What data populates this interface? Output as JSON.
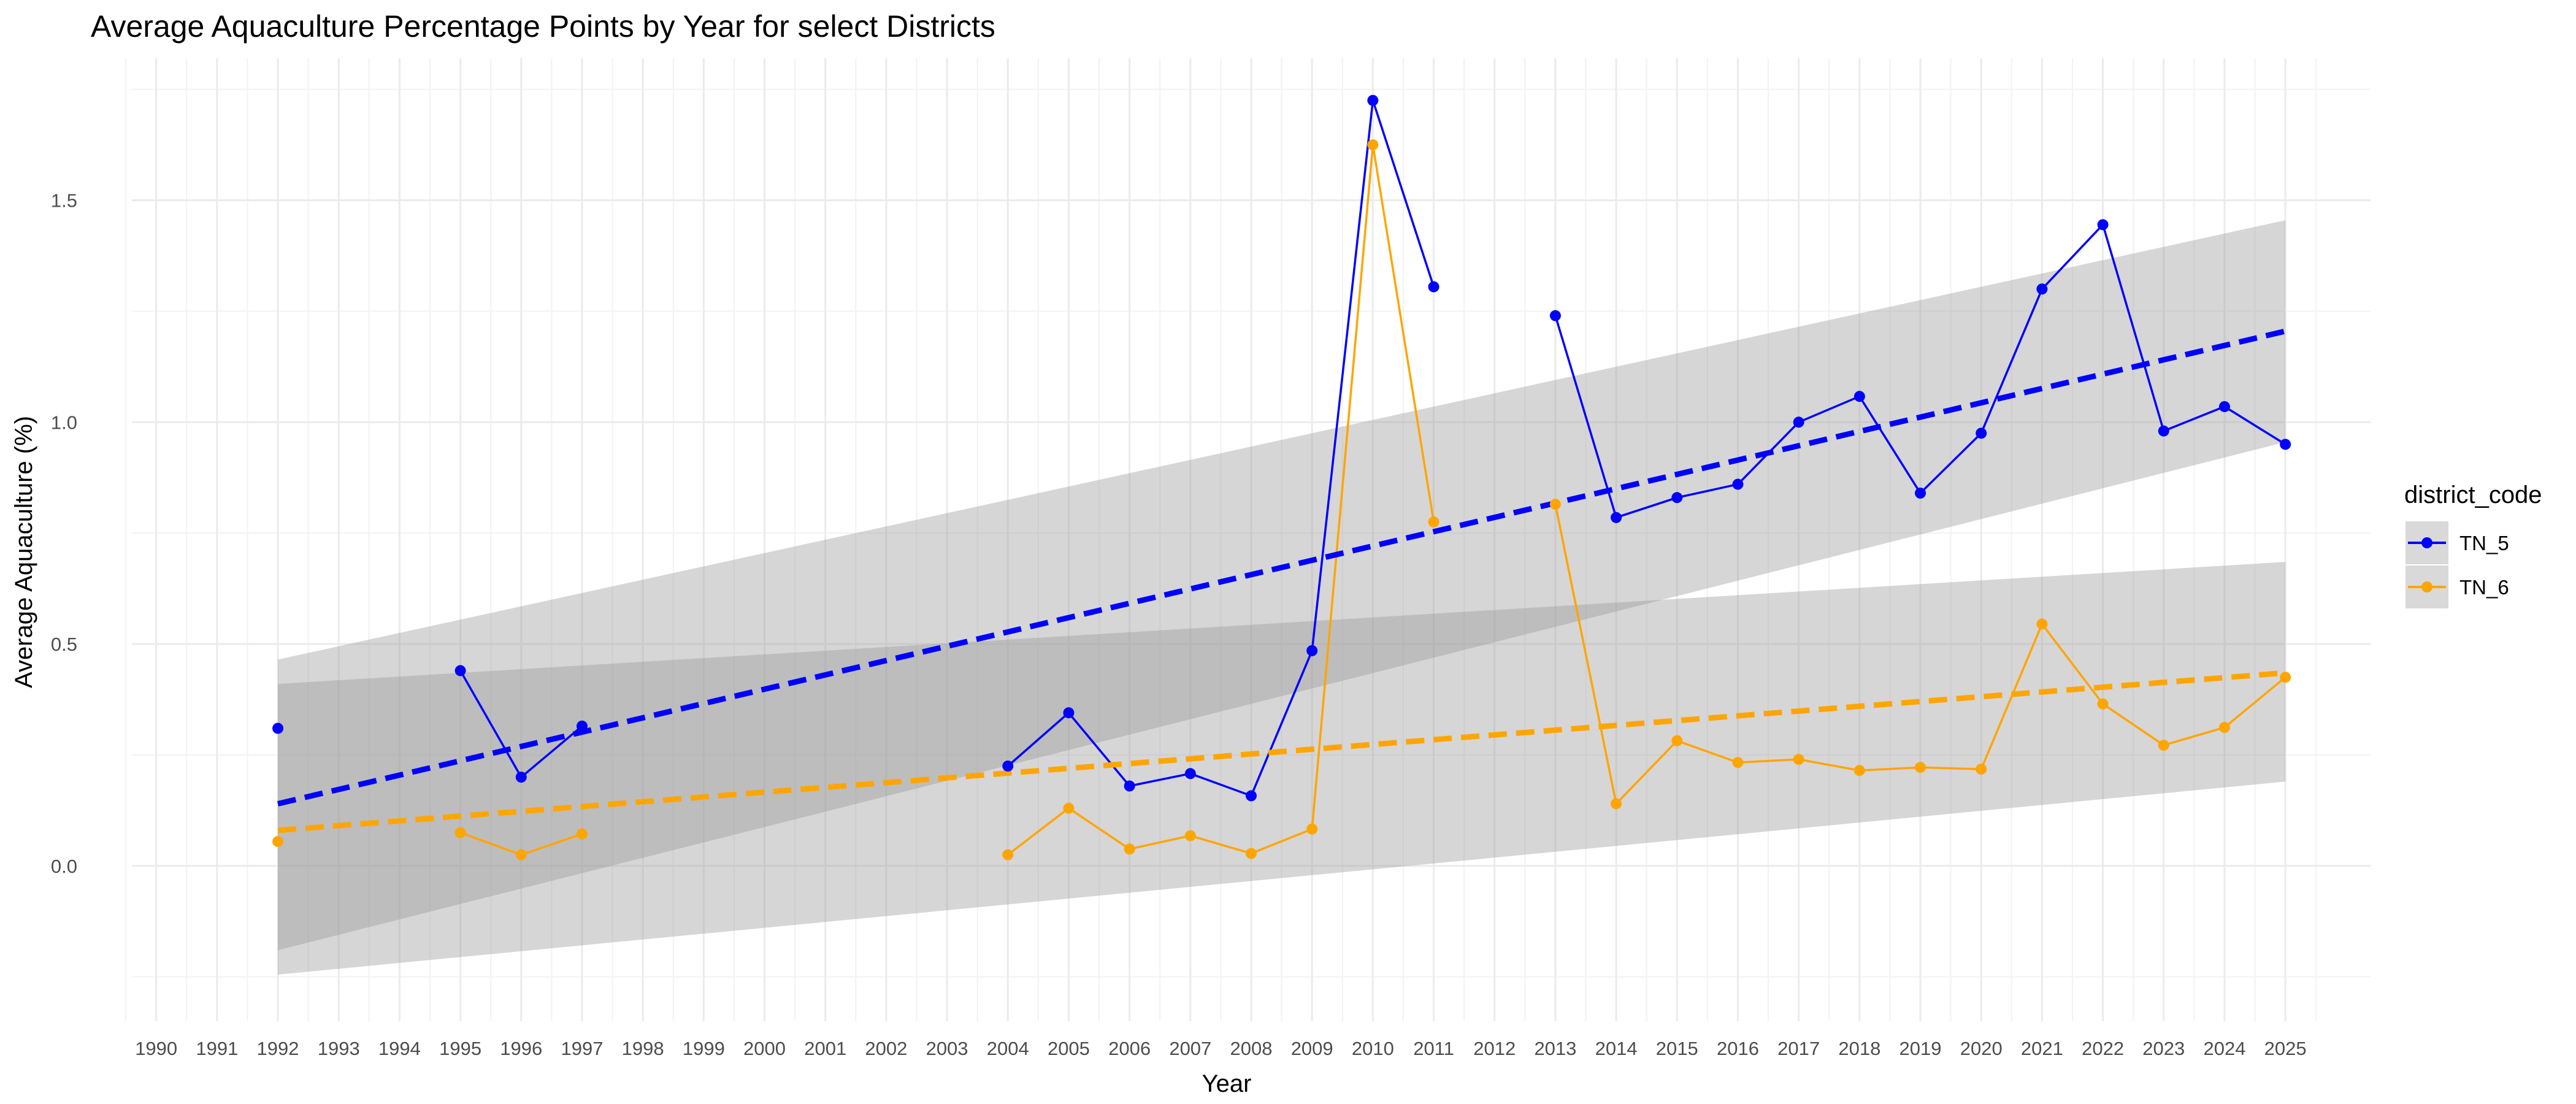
{
  "chart_data": {
    "type": "line",
    "title": "Average Aquaculture Percentage Points by Year for select Districts",
    "xlabel": "Year",
    "ylabel": "Average Aquaculture (%)",
    "x_ticks": [
      1990,
      1991,
      1992,
      1993,
      1994,
      1995,
      1996,
      1997,
      1998,
      1999,
      2000,
      2001,
      2002,
      2003,
      2004,
      2005,
      2006,
      2007,
      2008,
      2009,
      2010,
      2011,
      2012,
      2013,
      2014,
      2015,
      2016,
      2017,
      2018,
      2019,
      2020,
      2021,
      2022,
      2023,
      2024,
      2025
    ],
    "y_ticks": [
      0.0,
      0.5,
      1.0,
      1.5
    ],
    "y_tick_labels": [
      "0.0",
      "0.5",
      "1.0",
      "1.5"
    ],
    "xlim": [
      1989.6,
      2026.4
    ],
    "ylim": [
      -0.35,
      1.82
    ],
    "grid": true,
    "legend": {
      "title": "district_code",
      "position": "right"
    },
    "series": [
      {
        "name": "TN_5",
        "color": "#0000ff",
        "segments": [
          [
            [
              1992,
              0.31
            ]
          ],
          [
            [
              1995,
              0.44
            ],
            [
              1996,
              0.2
            ],
            [
              1997,
              0.315
            ]
          ],
          [
            [
              2004,
              0.225
            ],
            [
              2005,
              0.345
            ],
            [
              2006,
              0.18
            ],
            [
              2007,
              0.208
            ],
            [
              2008,
              0.158
            ],
            [
              2009,
              0.485
            ],
            [
              2010,
              1.725
            ],
            [
              2011,
              1.305
            ]
          ],
          [
            [
              2013,
              1.24
            ],
            [
              2014,
              0.785
            ],
            [
              2015,
              0.83
            ],
            [
              2016,
              0.86
            ],
            [
              2017,
              1.0
            ],
            [
              2018,
              1.058
            ],
            [
              2019,
              0.84
            ],
            [
              2020,
              0.975
            ],
            [
              2021,
              1.3
            ],
            [
              2022,
              1.445
            ],
            [
              2023,
              0.98
            ],
            [
              2024,
              1.035
            ],
            [
              2025,
              0.95
            ]
          ]
        ],
        "trend": {
          "x": [
            1992,
            2025
          ],
          "y": [
            0.14,
            1.205
          ],
          "band_lower": [
            -0.19,
            0.955
          ],
          "band_upper": [
            0.465,
            1.455
          ]
        }
      },
      {
        "name": "TN_6",
        "color": "#ffa500",
        "segments": [
          [
            [
              1992,
              0.055
            ]
          ],
          [
            [
              1995,
              0.075
            ],
            [
              1996,
              0.025
            ],
            [
              1997,
              0.072
            ]
          ],
          [
            [
              2004,
              0.025
            ],
            [
              2005,
              0.13
            ],
            [
              2006,
              0.038
            ],
            [
              2007,
              0.068
            ],
            [
              2008,
              0.028
            ],
            [
              2009,
              0.083
            ],
            [
              2010,
              1.625
            ],
            [
              2011,
              0.775
            ]
          ],
          [
            [
              2013,
              0.815
            ],
            [
              2014,
              0.14
            ],
            [
              2015,
              0.282
            ],
            [
              2016,
              0.233
            ],
            [
              2017,
              0.24
            ],
            [
              2018,
              0.215
            ],
            [
              2019,
              0.222
            ],
            [
              2020,
              0.218
            ],
            [
              2021,
              0.545
            ],
            [
              2022,
              0.365
            ],
            [
              2023,
              0.272
            ],
            [
              2024,
              0.312
            ],
            [
              2025,
              0.425
            ]
          ]
        ],
        "trend": {
          "x": [
            1992,
            2025
          ],
          "y": [
            0.08,
            0.435
          ],
          "band_lower": [
            -0.245,
            0.19
          ],
          "band_upper": [
            0.41,
            0.685
          ]
        }
      }
    ]
  }
}
